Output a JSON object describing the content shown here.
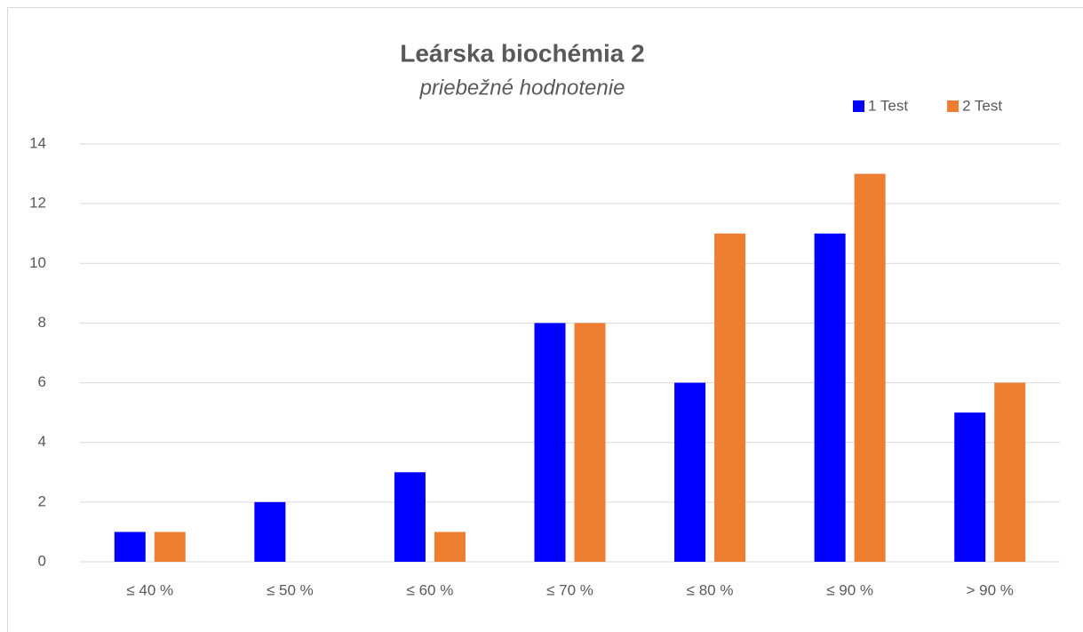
{
  "chart_data": {
    "type": "bar",
    "title": "Leárska biochémia 2",
    "subtitle": "priebežné hodnotenie",
    "categories": [
      "≤ 40 %",
      "≤ 50 %",
      "≤ 60 %",
      "≤ 70 %",
      "≤ 80 %",
      "≤ 90 %",
      "> 90 %"
    ],
    "series": [
      {
        "name": "1 Test",
        "color": "#0000ff",
        "values": [
          1,
          2,
          3,
          8,
          6,
          11,
          5
        ]
      },
      {
        "name": "2 Test",
        "color": "#ed7d31",
        "values": [
          1,
          0,
          1,
          8,
          11,
          13,
          6
        ]
      }
    ],
    "ylim": [
      0,
      14
    ],
    "yticks": [
      0,
      2,
      4,
      6,
      8,
      10,
      12,
      14
    ],
    "grid": true,
    "legend": "top-right"
  }
}
